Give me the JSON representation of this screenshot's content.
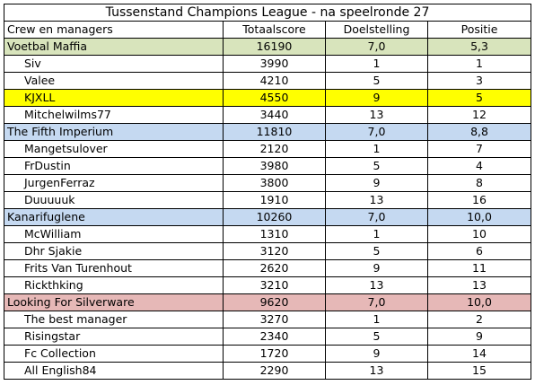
{
  "title": "Tussenstand Champions League - na speelronde 27",
  "columns": [
    "Crew en managers",
    "Totaalscore",
    "Doelstelling",
    "Positie"
  ],
  "colors": {
    "maffia": "#d8e4bc",
    "fifth": "#c5d9f1",
    "kanari": "#c5d9f1",
    "silverware": "#e6b8b7",
    "highlight": "#ffff00"
  },
  "teams": [
    {
      "name": "Voetbal Maffia",
      "score": "16190",
      "goal": "7,0",
      "pos": "5,3",
      "color_key": "maffia",
      "members": [
        {
          "name": "Siv",
          "score": "3990",
          "goal": "1",
          "pos": "1"
        },
        {
          "name": "Valee",
          "score": "4210",
          "goal": "5",
          "pos": "3"
        },
        {
          "name": "KJXLL",
          "score": "4550",
          "goal": "9",
          "pos": "5",
          "highlight": true
        },
        {
          "name": "Mitchelwilms77",
          "score": "3440",
          "goal": "13",
          "pos": "12"
        }
      ]
    },
    {
      "name": "The Fifth Imperium",
      "score": "11810",
      "goal": "7,0",
      "pos": "8,8",
      "color_key": "fifth",
      "members": [
        {
          "name": "Mangetsulover",
          "score": "2120",
          "goal": "1",
          "pos": "7"
        },
        {
          "name": "FrDustin",
          "score": "3980",
          "goal": "5",
          "pos": "4"
        },
        {
          "name": "JurgenFerraz",
          "score": "3800",
          "goal": "9",
          "pos": "8"
        },
        {
          "name": "Duuuuuk",
          "score": "1910",
          "goal": "13",
          "pos": "16"
        }
      ]
    },
    {
      "name": "Kanarifuglene",
      "score": "10260",
      "goal": "7,0",
      "pos": "10,0",
      "color_key": "kanari",
      "members": [
        {
          "name": "McWilliam",
          "score": "1310",
          "goal": "1",
          "pos": "10"
        },
        {
          "name": "Dhr Sjakie",
          "score": "3120",
          "goal": "5",
          "pos": "6"
        },
        {
          "name": "Frits Van Turenhout",
          "score": "2620",
          "goal": "9",
          "pos": "11"
        },
        {
          "name": "Rickthking",
          "score": "3210",
          "goal": "13",
          "pos": "13"
        }
      ]
    },
    {
      "name": "Looking For Silverware",
      "score": "9620",
      "goal": "7,0",
      "pos": "10,0",
      "color_key": "silverware",
      "members": [
        {
          "name": "The best manager",
          "score": "3270",
          "goal": "1",
          "pos": "2"
        },
        {
          "name": "Risingstar",
          "score": "2340",
          "goal": "5",
          "pos": "9"
        },
        {
          "name": "Fc Collection",
          "score": "1720",
          "goal": "9",
          "pos": "14"
        },
        {
          "name": "All English84",
          "score": "2290",
          "goal": "13",
          "pos": "15"
        }
      ]
    }
  ]
}
